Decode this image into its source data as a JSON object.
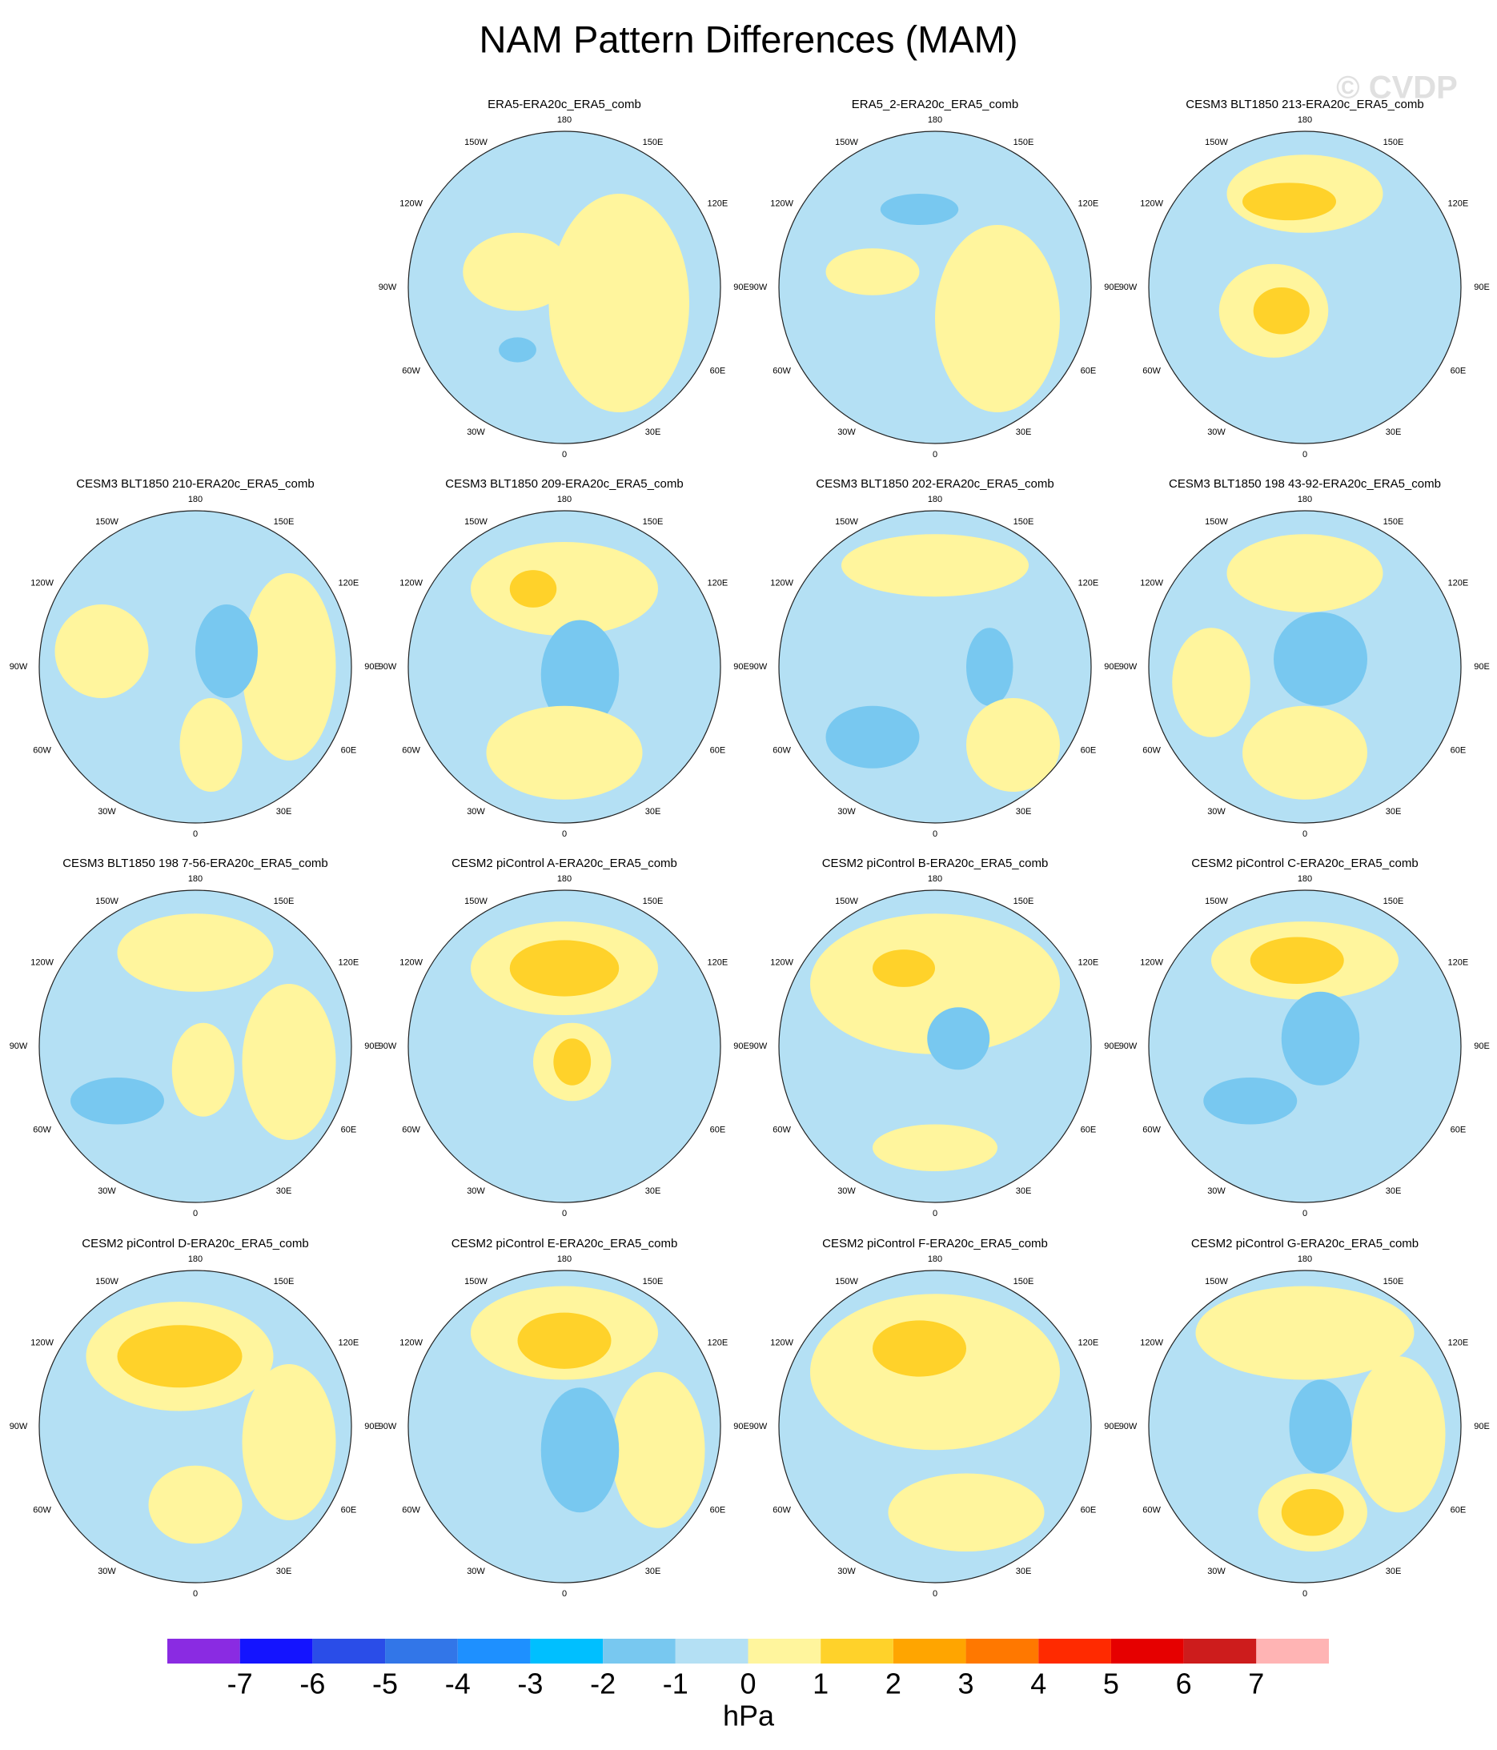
{
  "title": "NAM Pattern Differences (MAM)",
  "watermark": "© CVDP",
  "lon_labels": [
    "180",
    "150E",
    "120E",
    "90E",
    "60E",
    "30E",
    "0",
    "30W",
    "60W",
    "90W",
    "120W",
    "150W"
  ],
  "panels": [
    {
      "title": "ERA5-ERA20c_ERA5_comb"
    },
    {
      "title": "ERA5_2-ERA20c_ERA5_comb"
    },
    {
      "title": "CESM3 BLT1850 213-ERA20c_ERA5_comb"
    },
    {
      "title": "CESM3 BLT1850 210-ERA20c_ERA5_comb"
    },
    {
      "title": "CESM3 BLT1850 209-ERA20c_ERA5_comb"
    },
    {
      "title": "CESM3 BLT1850 202-ERA20c_ERA5_comb"
    },
    {
      "title": "CESM3 BLT1850 198 43-92-ERA20c_ERA5_comb"
    },
    {
      "title": "CESM3 BLT1850 198 7-56-ERA20c_ERA5_comb"
    },
    {
      "title": "CESM2 piControl A-ERA20c_ERA5_comb"
    },
    {
      "title": "CESM2 piControl B-ERA20c_ERA5_comb"
    },
    {
      "title": "CESM2 piControl C-ERA20c_ERA5_comb"
    },
    {
      "title": "CESM2 piControl D-ERA20c_ERA5_comb"
    },
    {
      "title": "CESM2 piControl E-ERA20c_ERA5_comb"
    },
    {
      "title": "CESM2 piControl F-ERA20c_ERA5_comb"
    },
    {
      "title": "CESM2 piControl G-ERA20c_ERA5_comb"
    }
  ],
  "colorbar": {
    "colors": [
      "#8a2be2",
      "#1414ff",
      "#2a4de8",
      "#3276e8",
      "#1e90ff",
      "#00bfff",
      "#78c8f0",
      "#b4e0f4",
      "#fff59d",
      "#ffd22a",
      "#ffa500",
      "#ff7800",
      "#ff2a00",
      "#e60000",
      "#cd1c1c",
      "#ffb4b4"
    ],
    "ticks": [
      -7,
      -6,
      -5,
      -4,
      -3,
      -2,
      -1,
      0,
      1,
      2,
      3,
      4,
      5,
      6,
      7
    ],
    "label": "hPa"
  }
}
